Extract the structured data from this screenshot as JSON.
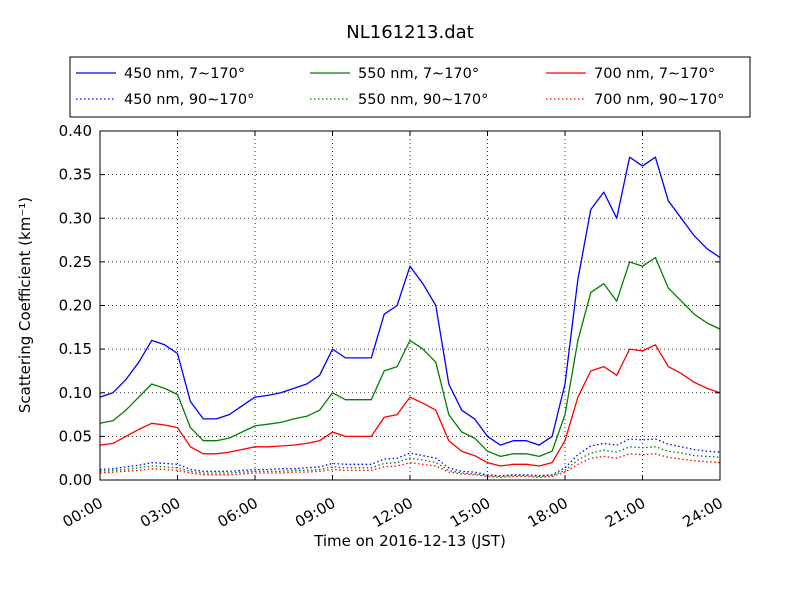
{
  "chart_data": {
    "type": "line",
    "title": "NL161213.dat",
    "xlabel": "Time on 2016-12-13 (JST)",
    "ylabel": "Scattering Coefficient (km⁻¹)",
    "xlim": [
      "00:00",
      "24:00"
    ],
    "ylim": [
      0,
      0.4
    ],
    "grid": true,
    "legend_position": "top",
    "x_ticks": [
      "00:00",
      "03:00",
      "06:00",
      "09:00",
      "12:00",
      "15:00",
      "18:00",
      "21:00",
      "24:00"
    ],
    "y_ticks": [
      "0.00",
      "0.05",
      "0.10",
      "0.15",
      "0.20",
      "0.25",
      "0.30",
      "0.35",
      "0.40"
    ],
    "x_hours": [
      0,
      0.5,
      1,
      1.5,
      2,
      2.5,
      3,
      3.5,
      4,
      4.5,
      5,
      5.5,
      6,
      6.5,
      7,
      7.5,
      8,
      8.5,
      9,
      9.5,
      10,
      10.5,
      11,
      11.5,
      12,
      12.5,
      13,
      13.5,
      14,
      14.5,
      15,
      15.5,
      16,
      16.5,
      17,
      17.5,
      18,
      18.5,
      19,
      19.5,
      20,
      20.5,
      21,
      21.5,
      22,
      22.5,
      23,
      23.5,
      24
    ],
    "series": [
      {
        "name": "450 nm, 7∼170°",
        "color": "#0000ff",
        "style": "solid",
        "values": [
          0.095,
          0.1,
          0.115,
          0.135,
          0.16,
          0.155,
          0.145,
          0.09,
          0.07,
          0.07,
          0.075,
          0.085,
          0.095,
          0.097,
          0.1,
          0.105,
          0.11,
          0.12,
          0.15,
          0.14,
          0.14,
          0.14,
          0.19,
          0.2,
          0.245,
          0.225,
          0.2,
          0.11,
          0.08,
          0.07,
          0.05,
          0.04,
          0.045,
          0.045,
          0.04,
          0.05,
          0.11,
          0.23,
          0.31,
          0.33,
          0.3,
          0.37,
          0.36,
          0.37,
          0.32,
          0.3,
          0.28,
          0.265,
          0.255
        ]
      },
      {
        "name": "450 nm, 90∼170°",
        "color": "#0000ff",
        "style": "dotted",
        "values": [
          0.012,
          0.013,
          0.015,
          0.017,
          0.02,
          0.019,
          0.018,
          0.012,
          0.01,
          0.01,
          0.01,
          0.011,
          0.012,
          0.012,
          0.013,
          0.013,
          0.014,
          0.015,
          0.019,
          0.018,
          0.018,
          0.018,
          0.024,
          0.025,
          0.031,
          0.028,
          0.025,
          0.014,
          0.01,
          0.009,
          0.006,
          0.005,
          0.006,
          0.006,
          0.005,
          0.006,
          0.014,
          0.029,
          0.039,
          0.042,
          0.04,
          0.047,
          0.046,
          0.047,
          0.041,
          0.038,
          0.035,
          0.033,
          0.032
        ]
      },
      {
        "name": "550 nm, 7∼170°",
        "color": "#008000",
        "style": "solid",
        "values": [
          0.065,
          0.068,
          0.08,
          0.095,
          0.11,
          0.105,
          0.098,
          0.06,
          0.045,
          0.045,
          0.048,
          0.055,
          0.062,
          0.064,
          0.066,
          0.07,
          0.073,
          0.08,
          0.1,
          0.092,
          0.092,
          0.092,
          0.125,
          0.13,
          0.16,
          0.15,
          0.135,
          0.075,
          0.055,
          0.048,
          0.033,
          0.027,
          0.03,
          0.03,
          0.027,
          0.033,
          0.075,
          0.16,
          0.215,
          0.225,
          0.205,
          0.25,
          0.245,
          0.255,
          0.22,
          0.205,
          0.19,
          0.18,
          0.173
        ]
      },
      {
        "name": "550 nm, 90∼170°",
        "color": "#008000",
        "style": "dotted",
        "values": [
          0.01,
          0.011,
          0.012,
          0.014,
          0.016,
          0.015,
          0.014,
          0.01,
          0.008,
          0.008,
          0.008,
          0.009,
          0.01,
          0.01,
          0.01,
          0.011,
          0.011,
          0.012,
          0.015,
          0.014,
          0.014,
          0.014,
          0.019,
          0.02,
          0.025,
          0.023,
          0.02,
          0.011,
          0.008,
          0.007,
          0.005,
          0.004,
          0.005,
          0.005,
          0.004,
          0.005,
          0.011,
          0.023,
          0.031,
          0.034,
          0.032,
          0.038,
          0.037,
          0.038,
          0.033,
          0.031,
          0.028,
          0.027,
          0.026
        ]
      },
      {
        "name": "700 nm, 7∼170°",
        "color": "#ff0000",
        "style": "solid",
        "values": [
          0.04,
          0.042,
          0.05,
          0.058,
          0.065,
          0.063,
          0.06,
          0.038,
          0.03,
          0.03,
          0.032,
          0.035,
          0.038,
          0.038,
          0.039,
          0.04,
          0.042,
          0.045,
          0.055,
          0.05,
          0.05,
          0.05,
          0.072,
          0.075,
          0.095,
          0.088,
          0.08,
          0.045,
          0.033,
          0.028,
          0.02,
          0.016,
          0.018,
          0.018,
          0.016,
          0.02,
          0.045,
          0.095,
          0.125,
          0.13,
          0.12,
          0.15,
          0.148,
          0.155,
          0.13,
          0.122,
          0.112,
          0.105,
          0.1
        ]
      },
      {
        "name": "700 nm, 90∼170°",
        "color": "#ff0000",
        "style": "dotted",
        "values": [
          0.008,
          0.009,
          0.01,
          0.011,
          0.013,
          0.012,
          0.011,
          0.008,
          0.006,
          0.006,
          0.006,
          0.007,
          0.008,
          0.008,
          0.008,
          0.009,
          0.009,
          0.01,
          0.012,
          0.011,
          0.011,
          0.011,
          0.015,
          0.016,
          0.02,
          0.018,
          0.016,
          0.009,
          0.007,
          0.006,
          0.004,
          0.003,
          0.004,
          0.004,
          0.003,
          0.004,
          0.009,
          0.018,
          0.025,
          0.027,
          0.025,
          0.03,
          0.029,
          0.03,
          0.026,
          0.024,
          0.022,
          0.021,
          0.02
        ]
      }
    ]
  }
}
